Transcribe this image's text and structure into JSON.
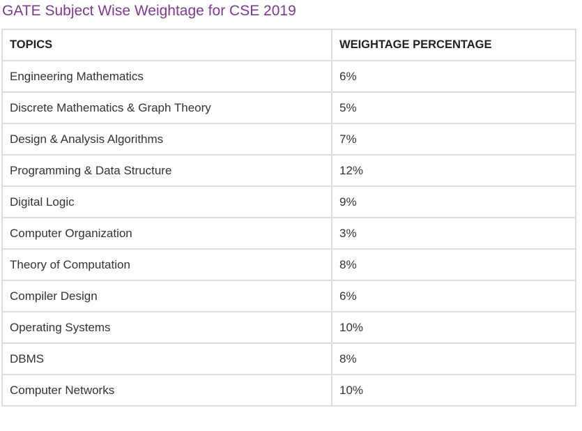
{
  "title": "GATE Subject Wise Weightage for CSE 2019",
  "table": {
    "headers": [
      "TOPICS",
      "WEIGHTAGE PERCENTAGE"
    ],
    "rows": [
      [
        "Engineering Mathematics",
        "6%"
      ],
      [
        "Discrete Mathematics & Graph Theory",
        "5%"
      ],
      [
        "Design & Analysis Algorithms",
        "7%"
      ],
      [
        "Programming & Data Structure",
        "12%"
      ],
      [
        "Digital Logic",
        "9%"
      ],
      [
        "Computer Organization",
        "3%"
      ],
      [
        "Theory of Computation",
        "8%"
      ],
      [
        "Compiler Design",
        "6%"
      ],
      [
        "Operating Systems",
        "10%"
      ],
      [
        "DBMS",
        "8%"
      ],
      [
        "Computer Networks",
        "10%"
      ]
    ]
  },
  "colors": {
    "title": "#7a3b8c",
    "text": "#333333",
    "border": "#dddddd",
    "background": "#ffffff"
  }
}
